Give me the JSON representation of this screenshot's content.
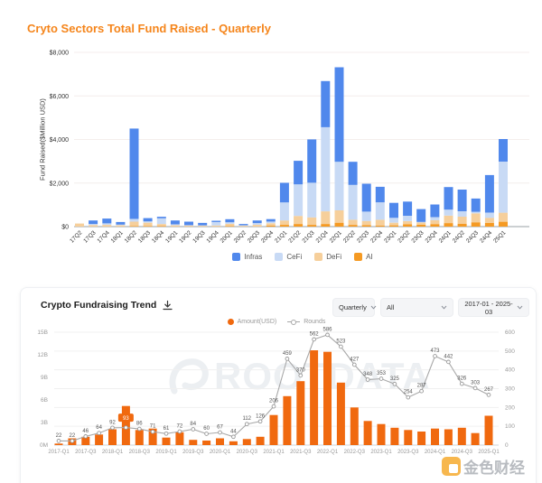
{
  "watermarks": {
    "rootdata": "ROOTDATA",
    "brand": "金色财经"
  },
  "trend": {
    "controls": {
      "interval": "Quarterly",
      "category": "All",
      "date_range": "2017-01 - 2025-03"
    }
  },
  "chart_data": [
    {
      "type": "bar",
      "stacked": true,
      "title": "Cryto Sectors Total Fund Raised - Quarterly",
      "title_color": "#F5851B",
      "xlabel": "",
      "ylabel": "Fund Raised($Million USD)",
      "ylim": [
        0,
        8000
      ],
      "ytick_labels": [
        "$0",
        "$2,000",
        "$4,000",
        "$6,000",
        "$8,000"
      ],
      "grid": true,
      "legend_position": "bottom",
      "categories": [
        "17Q2",
        "17Q3",
        "17Q4",
        "18Q1",
        "18Q2",
        "18Q3",
        "18Q4",
        "19Q1",
        "19Q2",
        "19Q3",
        "19Q4",
        "20Q1",
        "20Q2",
        "20Q3",
        "20Q4",
        "21Q1",
        "21Q2",
        "21Q3",
        "21Q4",
        "22Q1",
        "22Q2",
        "22Q3",
        "22Q4",
        "23Q1",
        "23Q2",
        "23Q3",
        "23Q4",
        "24Q1",
        "24Q2",
        "24Q3",
        "24Q4",
        "25Q1"
      ],
      "units": "$ million (estimated from gridlines)",
      "stack_order_bottom_to_top": [
        "AI",
        "DeFi",
        "CeFi",
        "Infras"
      ],
      "series": [
        {
          "name": "Infras",
          "color": "#5088EC",
          "values": [
            10,
            160,
            220,
            120,
            4150,
            150,
            70,
            180,
            160,
            110,
            60,
            140,
            60,
            120,
            110,
            900,
            1080,
            1990,
            2120,
            4340,
            1060,
            1280,
            715,
            690,
            650,
            590,
            580,
            1035,
            995,
            610,
            1725,
            1035
          ]
        },
        {
          "name": "CeFi",
          "color": "#C8DAF5",
          "values": [
            10,
            50,
            70,
            30,
            120,
            60,
            260,
            40,
            20,
            20,
            160,
            70,
            20,
            80,
            80,
            830,
            1450,
            1590,
            3860,
            2230,
            1600,
            430,
            800,
            220,
            250,
            30,
            140,
            275,
            250,
            70,
            235,
            2345
          ]
        },
        {
          "name": "DeFi",
          "color": "#F6CF9B",
          "values": [
            140,
            70,
            80,
            60,
            200,
            150,
            100,
            60,
            50,
            40,
            50,
            100,
            40,
            80,
            110,
            200,
            370,
            345,
            580,
            565,
            235,
            190,
            275,
            120,
            140,
            100,
            180,
            345,
            330,
            410,
            235,
            415
          ]
        },
        {
          "name": "AI",
          "color": "#F59A23",
          "values": [
            5,
            10,
            10,
            10,
            30,
            30,
            20,
            10,
            10,
            10,
            10,
            30,
            10,
            10,
            45,
            80,
            120,
            80,
            120,
            180,
            80,
            70,
            40,
            60,
            110,
            85,
            115,
            160,
            125,
            200,
            170,
            225
          ]
        }
      ]
    },
    {
      "type": "bar+line",
      "title": "Crypto Fundraising Trend",
      "grid": true,
      "legend_position": "top-center",
      "categories": [
        "2017-Q1",
        "2017-Q2",
        "2017-Q3",
        "2017-Q4",
        "2018-Q1",
        "2018-Q2",
        "2018-Q3",
        "2018-Q4",
        "2019-Q1",
        "2019-Q2",
        "2019-Q3",
        "2019-Q4",
        "2020-Q1",
        "2020-Q2",
        "2020-Q3",
        "2020-Q4",
        "2021-Q1",
        "2021-Q2",
        "2021-Q3",
        "2021-Q4",
        "2022-Q1",
        "2022-Q2",
        "2022-Q3",
        "2022-Q4",
        "2023-Q1",
        "2023-Q2",
        "2023-Q3",
        "2023-Q4",
        "2024-Q1",
        "2024-Q2",
        "2024-Q3",
        "2024-Q4",
        "2025-Q1"
      ],
      "x_label_every": 2,
      "bar_series": {
        "name": "Amount(USD)",
        "color": "#F0690F",
        "unit": "billion USD (estimated from gridlines)",
        "values": [
          0.2,
          0.9,
          1.1,
          1.4,
          2.1,
          5.2,
          2.0,
          2.2,
          1.0,
          1.7,
          0.7,
          0.6,
          0.9,
          0.5,
          0.8,
          1.1,
          4.0,
          6.5,
          8.5,
          12.6,
          12.4,
          8.3,
          5.0,
          3.2,
          2.8,
          2.3,
          2.0,
          1.8,
          2.2,
          2.1,
          2.3,
          1.6,
          3.9
        ]
      },
      "line_series": {
        "name": "Rounds",
        "color": "#A8A8A8",
        "values": [
          22,
          22,
          46,
          64,
          92,
          93,
          86,
          71,
          61,
          72,
          84,
          60,
          67,
          44,
          112,
          126,
          206,
          459,
          370,
          562,
          586,
          523,
          427,
          348,
          353,
          325,
          254,
          287,
          473,
          442,
          326,
          303,
          267
        ],
        "highlight_index": 5
      },
      "left_axis": {
        "labels": [
          "0M",
          "3B",
          "6B",
          "9B",
          "12B",
          "15B"
        ],
        "lim_billion": [
          0,
          15
        ]
      },
      "right_axis": {
        "labels": [
          "0",
          "100",
          "200",
          "300",
          "400",
          "500",
          "600"
        ],
        "lim": [
          0,
          600
        ]
      }
    }
  ]
}
